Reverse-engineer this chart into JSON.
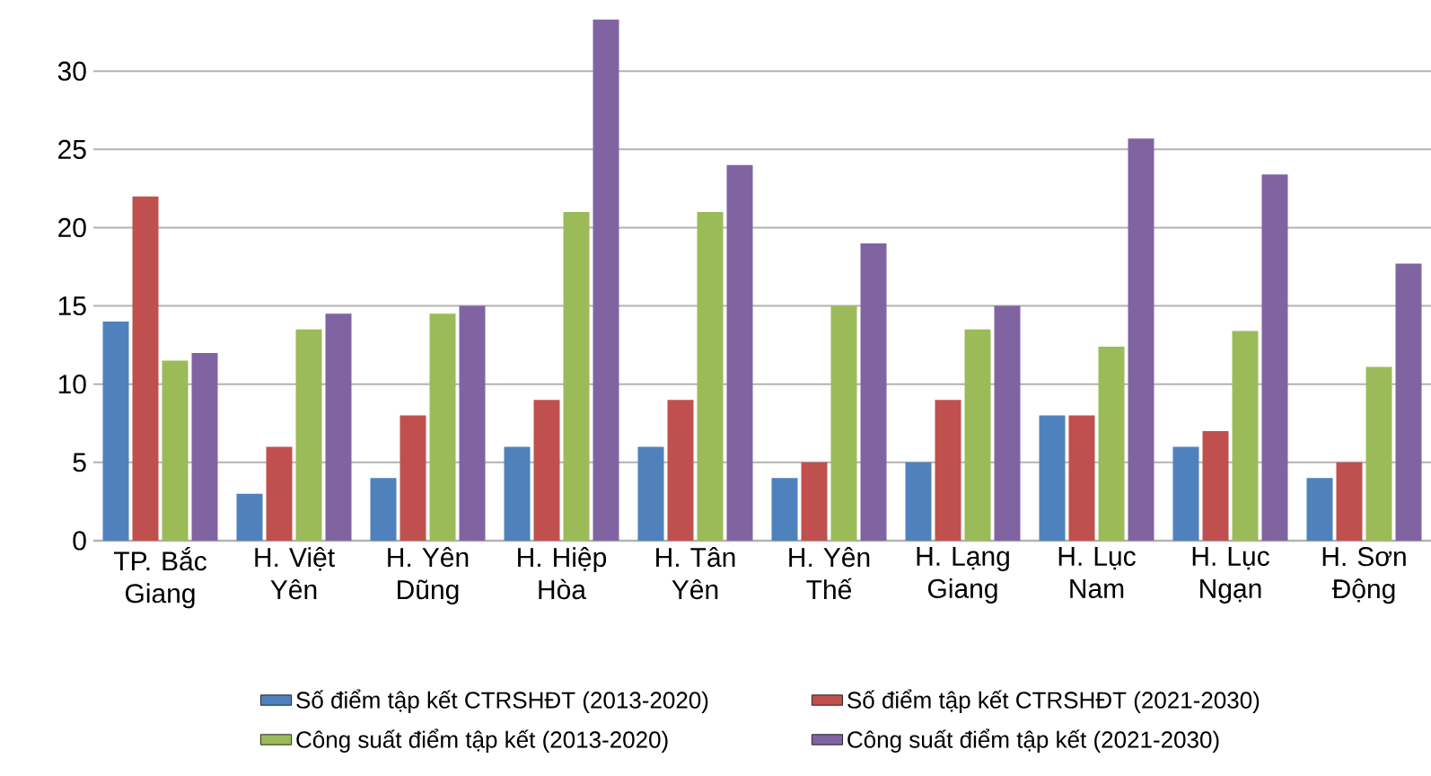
{
  "chart_data": {
    "type": "bar",
    "categories": [
      "TP. Bắc Giang",
      "H. Việt Yên",
      "H. Yên Dũng",
      "H. Hiệp Hòa",
      "H. Tân Yên",
      "H. Yên Thế",
      "H. Lạng Giang",
      "H. Lục Nam",
      "H. Lục Ngạn",
      "H. Sơn Động"
    ],
    "series": [
      {
        "name": "Số điểm tập kết CTRSHĐT (2013-2020)",
        "color": "#4f81bd",
        "values": [
          14,
          3,
          4,
          6,
          6,
          4,
          5,
          8,
          6,
          4
        ]
      },
      {
        "name": "Số điểm tập kết CTRSHĐT (2021-2030)",
        "color": "#c0504d",
        "values": [
          22,
          6,
          8,
          9,
          9,
          5,
          9,
          8,
          7,
          5
        ]
      },
      {
        "name": "Công suất điểm tập kết (2013-2020)",
        "color": "#9bbb59",
        "values": [
          11.5,
          13.5,
          14.5,
          21,
          21,
          15,
          13.5,
          12.4,
          13.4,
          11.1
        ]
      },
      {
        "name": "Công suất điểm tập kết (2021-2030)",
        "color": "#8064a2",
        "values": [
          12,
          14.5,
          15,
          33.3,
          24,
          19,
          15,
          25.7,
          23.4,
          17.7
        ]
      }
    ],
    "ylim": [
      0,
      33.4
    ],
    "yticks": [
      0,
      5,
      10,
      15,
      20,
      25,
      30
    ],
    "grid": "y",
    "legend": "bottom"
  }
}
